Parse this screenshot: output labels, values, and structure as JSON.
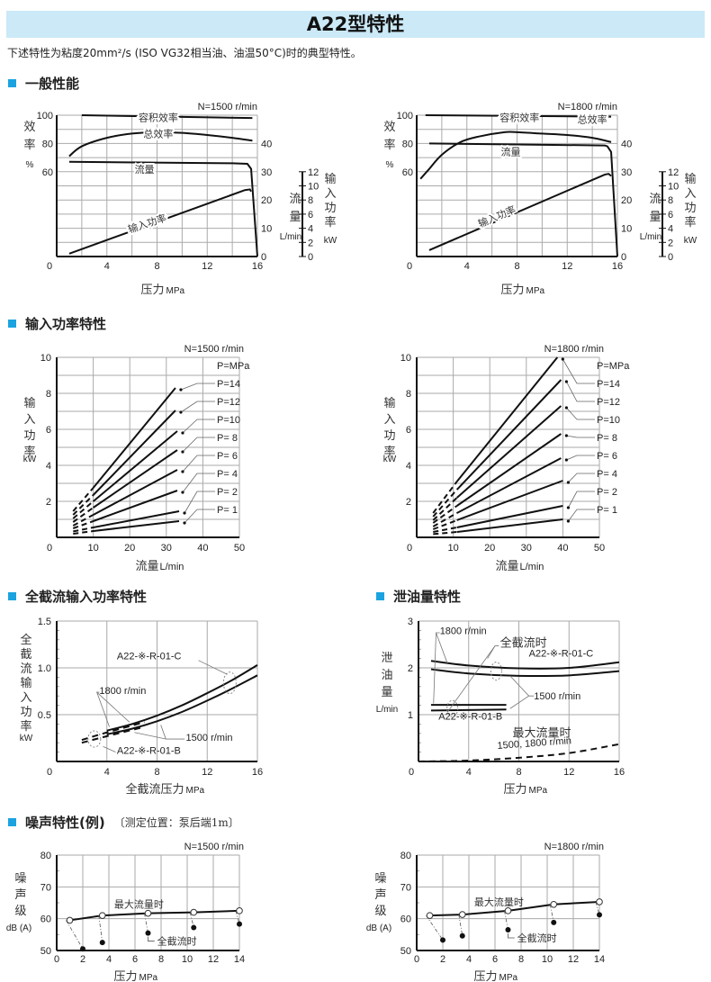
{
  "page": {
    "title": "A22型特性",
    "intro": "下述特性为粘度20mm²/s (ISO VG32相当油、油温50°C)时的典型特性。",
    "sections": {
      "general": "一般性能",
      "input_power": "输入功率特性",
      "cutoff_power": "全截流输入功率特性",
      "drain": "泄油量特性",
      "noise": "噪声特性(例)",
      "noise_note": "〔测定位置：泵后端1m〕"
    }
  },
  "colors": {
    "accent": "#1aa3e0",
    "title_bg": "#cbe9f7",
    "line": "#111111",
    "grid": "#aaaaaa"
  },
  "chart_data": [
    {
      "id": "general-1500",
      "type": "line",
      "condition": "N=1500 r/min",
      "xlabel": "压力 MPa",
      "xlim": [
        0,
        16
      ],
      "xticks": [
        0,
        4,
        8,
        12,
        16
      ],
      "y_left_label": [
        "效",
        "率",
        "%"
      ],
      "y_left_ticks": [
        60,
        80,
        100
      ],
      "y_flow_label": [
        "流",
        "量",
        "L/min"
      ],
      "y_flow_ticks": [
        0,
        10,
        20,
        30,
        40
      ],
      "y_power_label": [
        "输",
        "入",
        "功",
        "率",
        "kW"
      ],
      "y_power_ticks": [
        0,
        2,
        4,
        6,
        8,
        10,
        12
      ],
      "series": [
        {
          "name": "容积效率",
          "axis": "eff",
          "x": [
            2,
            15.6
          ],
          "y": [
            100,
            98
          ]
        },
        {
          "name": "总效率",
          "axis": "eff",
          "x": [
            1,
            2,
            4,
            6,
            8,
            10,
            12,
            14,
            15.6
          ],
          "y": [
            71,
            78,
            84,
            87,
            88,
            87.5,
            86,
            84,
            82
          ]
        },
        {
          "name": "流量",
          "axis": "flow",
          "x": [
            1,
            14,
            15.2,
            15.5,
            16
          ],
          "y": [
            33.5,
            33,
            32.8,
            31,
            0
          ]
        },
        {
          "name": "输入功率",
          "axis": "power",
          "x": [
            1,
            15,
            15.4,
            15.5
          ],
          "y": [
            0.4,
            9.4,
            9.5,
            9.2
          ]
        }
      ]
    },
    {
      "id": "general-1800",
      "type": "line",
      "condition": "N=1800 r/min",
      "xlabel": "压力 MPa",
      "xlim": [
        0,
        16
      ],
      "xticks": [
        0,
        4,
        8,
        12,
        16
      ],
      "y_left_label": [
        "效",
        "率",
        "%"
      ],
      "y_left_ticks": [
        60,
        80,
        100
      ],
      "y_flow_label": [
        "流",
        "量",
        "L/min"
      ],
      "y_flow_ticks": [
        0,
        10,
        20,
        30,
        40
      ],
      "y_power_label": [
        "输",
        "入",
        "功",
        "率",
        "kW"
      ],
      "y_power_ticks": [
        0,
        2,
        4,
        6,
        8,
        10,
        12
      ],
      "series": [
        {
          "name": "容积效率",
          "axis": "eff",
          "x": [
            0.7,
            15.5
          ],
          "y": [
            100,
            99
          ]
        },
        {
          "name": "总效率",
          "axis": "eff",
          "x": [
            0.3,
            1,
            2,
            3.5,
            5,
            7,
            8,
            10,
            12,
            14,
            15.5
          ],
          "y": [
            55,
            62,
            72,
            81,
            85,
            88,
            88,
            87,
            86,
            84,
            81
          ]
        },
        {
          "name": "流量",
          "axis": "flow",
          "x": [
            1,
            15,
            15.2,
            15.5,
            16
          ],
          "y": [
            40,
            39.3,
            39,
            37,
            0
          ]
        },
        {
          "name": "输入功率",
          "axis": "power",
          "x": [
            1,
            15,
            15.3,
            15.5
          ],
          "y": [
            0.9,
            11.6,
            11.7,
            11.4
          ]
        }
      ]
    },
    {
      "id": "input-1500",
      "type": "line",
      "condition": "N=1500 r/min",
      "xlabel": "流量L/min",
      "ylabel": [
        "输",
        "入",
        "功",
        "率",
        "kW"
      ],
      "xlim": [
        0,
        50
      ],
      "ylim": [
        0,
        10
      ],
      "xticks": [
        0,
        10,
        20,
        30,
        40,
        50
      ],
      "yticks": [
        2,
        4,
        6,
        8,
        10
      ],
      "legend_title": "P=MPa",
      "series": [
        {
          "name": "P=14",
          "x0": 4.5,
          "xd": 10,
          "x1": 32.5,
          "y0": 1.45,
          "yd": 2.75,
          "y1": 8.3
        },
        {
          "name": "P=12",
          "x0": 4.5,
          "xd": 10,
          "x1": 32.5,
          "y0": 1.25,
          "yd": 2.35,
          "y1": 7.05
        },
        {
          "name": "P=10",
          "x0": 4.5,
          "xd": 10,
          "x1": 33,
          "y0": 1.05,
          "yd": 2.0,
          "y1": 5.9
        },
        {
          "name": "P= 8",
          "x0": 4.5,
          "xd": 10,
          "x1": 33,
          "y0": 0.85,
          "yd": 1.65,
          "y1": 4.85
        },
        {
          "name": "P= 6",
          "x0": 4.5,
          "xd": 10,
          "x1": 33,
          "y0": 0.65,
          "yd": 1.25,
          "y1": 3.75
        },
        {
          "name": "P= 4",
          "x0": 4.5,
          "xd": 10,
          "x1": 33,
          "y0": 0.5,
          "yd": 0.9,
          "y1": 2.6
        },
        {
          "name": "P= 2",
          "x0": 4.5,
          "xd": 10,
          "x1": 33.5,
          "y0": 0.33,
          "yd": 0.55,
          "y1": 1.45
        },
        {
          "name": "P= 1",
          "x0": 4.5,
          "xd": 10,
          "x1": 33.5,
          "y0": 0.2,
          "yd": 0.35,
          "y1": 0.9
        }
      ]
    },
    {
      "id": "input-1800",
      "type": "line",
      "condition": "N=1800 r/min",
      "xlabel": "流量L/min",
      "ylabel": [
        "输",
        "入",
        "功",
        "率",
        "kW"
      ],
      "xlim": [
        0,
        50
      ],
      "ylim": [
        0,
        10
      ],
      "xticks": [
        0,
        10,
        20,
        30,
        40,
        50
      ],
      "yticks": [
        2,
        4,
        6,
        8,
        10
      ],
      "legend_title": "P=MPa",
      "series": [
        {
          "name": "P=14",
          "x0": 4.5,
          "xd": 11,
          "x1": 38.5,
          "y0": 1.35,
          "yd": 3.1,
          "y1": 10.0
        },
        {
          "name": "P=12",
          "x0": 4.5,
          "xd": 11,
          "x1": 39.5,
          "y0": 1.15,
          "yd": 2.65,
          "y1": 8.75
        },
        {
          "name": "P=10",
          "x0": 4.5,
          "xd": 11,
          "x1": 39.5,
          "y0": 0.95,
          "yd": 2.2,
          "y1": 7.3
        },
        {
          "name": "P= 8",
          "x0": 4.5,
          "xd": 11,
          "x1": 39.5,
          "y0": 0.8,
          "yd": 1.75,
          "y1": 5.75
        },
        {
          "name": "P= 6",
          "x0": 4.5,
          "xd": 11,
          "x1": 39.5,
          "y0": 0.6,
          "yd": 1.35,
          "y1": 4.4
        },
        {
          "name": "P= 4",
          "x0": 4.5,
          "xd": 11,
          "x1": 40,
          "y0": 0.45,
          "yd": 0.95,
          "y1": 3.15
        },
        {
          "name": "P= 2",
          "x0": 4.5,
          "xd": 11,
          "x1": 40,
          "y0": 0.3,
          "yd": 0.55,
          "y1": 1.75
        },
        {
          "name": "P= 1",
          "x0": 4.5,
          "xd": 11,
          "x1": 40,
          "y0": 0.18,
          "yd": 0.3,
          "y1": 1.0
        }
      ]
    },
    {
      "id": "cutoff-power",
      "type": "line",
      "xlabel": "全截流压力 MPa",
      "ylabel": [
        "全",
        "截",
        "流",
        "输",
        "入",
        "功",
        "率",
        "kW"
      ],
      "xlim": [
        0,
        16
      ],
      "ylim": [
        0,
        1.5
      ],
      "xticks": [
        0,
        4,
        8,
        12,
        16
      ],
      "yticks": [
        0.5,
        1.0,
        1.5
      ],
      "annotations": [
        "A22-※-R-01-C",
        "1800 r/min",
        "1500 r/min",
        "A22-※-R-01-B"
      ],
      "series": [
        {
          "name": "1800 r/min",
          "x": [
            4,
            6,
            8,
            10,
            12,
            14,
            16
          ],
          "y": [
            0.33,
            0.4,
            0.49,
            0.6,
            0.73,
            0.87,
            1.03
          ]
        },
        {
          "name": "1500 r/min",
          "x": [
            4,
            6,
            8,
            10,
            12,
            14,
            16
          ],
          "y": [
            0.29,
            0.35,
            0.43,
            0.53,
            0.65,
            0.78,
            0.92
          ]
        },
        {
          "name": "B-1800 (dashed)",
          "x": [
            2,
            4,
            7
          ],
          "y": [
            0.23,
            0.31,
            0.42
          ],
          "dashed": true
        },
        {
          "name": "B-1500 (dashed)",
          "x": [
            2,
            4,
            7
          ],
          "y": [
            0.2,
            0.27,
            0.37
          ],
          "dashed": true
        }
      ]
    },
    {
      "id": "drain",
      "type": "line",
      "xlabel": "压力 MPa",
      "ylabel": [
        "泄",
        "油",
        "量",
        "L/min"
      ],
      "xlim": [
        0,
        16
      ],
      "ylim": [
        0,
        3
      ],
      "xticks": [
        0,
        4,
        8,
        12,
        16
      ],
      "yticks": [
        1,
        2,
        3
      ],
      "annotations": [
        "1800 r/min",
        "全截流时",
        "A22-※-R-01-C",
        "1500 r/min",
        "A22-※-R-01-B",
        "最大流量时",
        "1500, 1800 r/min"
      ],
      "series": [
        {
          "name": "C-1800",
          "x": [
            1,
            4,
            8,
            12,
            16
          ],
          "y": [
            2.15,
            2.05,
            1.99,
            2.0,
            2.12
          ]
        },
        {
          "name": "C-1500",
          "x": [
            1,
            4,
            8,
            12,
            16
          ],
          "y": [
            1.97,
            1.88,
            1.83,
            1.84,
            1.93
          ]
        },
        {
          "name": "B-1800",
          "x": [
            1,
            7
          ],
          "y": [
            1.21,
            1.21
          ]
        },
        {
          "name": "B-1500",
          "x": [
            1,
            7
          ],
          "y": [
            1.09,
            1.11
          ]
        },
        {
          "name": "最大流量时",
          "x": [
            0,
            4,
            8,
            12,
            16
          ],
          "y": [
            0.0,
            0.02,
            0.08,
            0.18,
            0.37
          ],
          "dashed": true
        }
      ]
    },
    {
      "id": "noise-1500",
      "type": "scatter",
      "condition": "N=1500 r/min",
      "xlabel": "压力 MPa",
      "ylabel": [
        "噪",
        "声",
        "级",
        "dB (A)"
      ],
      "xlim": [
        0,
        14
      ],
      "ylim": [
        50,
        80
      ],
      "xticks": [
        0,
        2,
        4,
        6,
        8,
        10,
        12,
        14
      ],
      "yticks": [
        50,
        60,
        70,
        80
      ],
      "labels": [
        "最大流量时",
        "全截流时"
      ],
      "max_flow": {
        "x": [
          1,
          3.5,
          7,
          10.5,
          14
        ],
        "y": [
          59.5,
          61,
          61.7,
          62,
          62.5
        ]
      },
      "cutoff": {
        "x": [
          2,
          3.5,
          7,
          10.5,
          14
        ],
        "y": [
          50.5,
          52.5,
          55.5,
          57.2,
          58.3
        ]
      }
    },
    {
      "id": "noise-1800",
      "type": "scatter",
      "condition": "N=1800 r/min",
      "xlabel": "压力 MPa",
      "ylabel": [
        "噪",
        "声",
        "级",
        "dB (A)"
      ],
      "xlim": [
        0,
        14
      ],
      "ylim": [
        50,
        80
      ],
      "xticks": [
        0,
        2,
        4,
        6,
        8,
        10,
        12,
        14
      ],
      "yticks": [
        50,
        60,
        70,
        80
      ],
      "labels": [
        "最大流量时",
        "全截流时"
      ],
      "max_flow": {
        "x": [
          1,
          3.5,
          7,
          10.5,
          14
        ],
        "y": [
          61,
          61.3,
          62.5,
          64.5,
          65.3
        ]
      },
      "cutoff": {
        "x": [
          2,
          3.5,
          7,
          10.5,
          14
        ],
        "y": [
          53.3,
          54.6,
          56.5,
          58.8,
          61.2
        ]
      }
    }
  ]
}
